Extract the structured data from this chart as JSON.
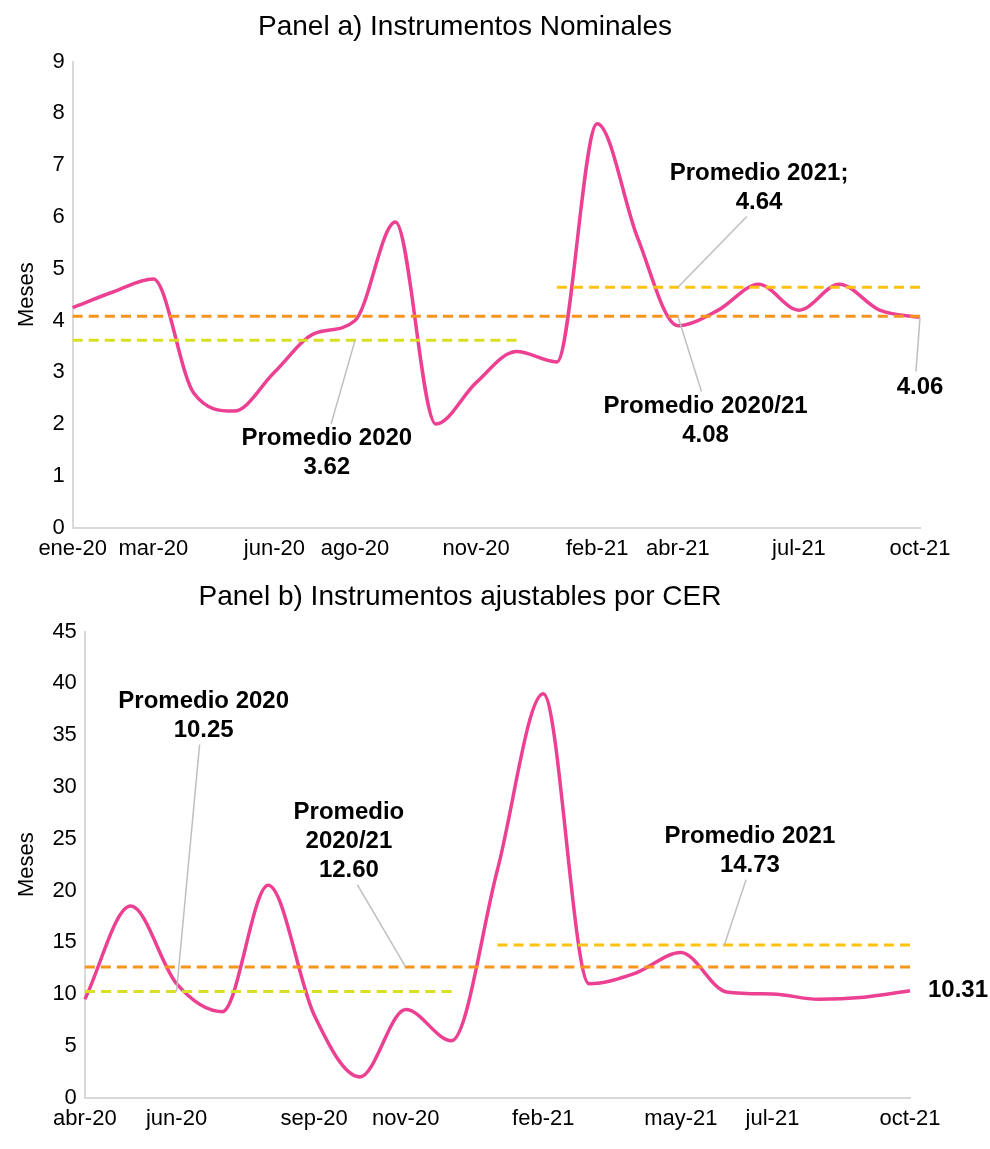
{
  "chart_data": [
    {
      "type": "line",
      "title": "Panel a) Instrumentos Nominales",
      "ylabel": "Meses",
      "categories": [
        "ene-20",
        null,
        "mar-20",
        null,
        null,
        "jun-20",
        null,
        "ago-20",
        null,
        null,
        "nov-20",
        null,
        null,
        "feb-21",
        null,
        "abr-21",
        null,
        null,
        "jul-21",
        null,
        null,
        "oct-21"
      ],
      "series": [
        {
          "color": "#ec4192",
          "values": [
            4.25,
            4.55,
            4.8,
            2.6,
            2.25,
            3.0,
            3.75,
            4.0,
            5.9,
            2.0,
            2.8,
            3.4,
            3.2,
            7.8,
            5.6,
            3.9,
            4.2,
            4.7,
            4.2,
            4.7,
            4.2,
            4.06
          ],
          "value_labels": [
            null,
            null,
            null,
            null,
            null,
            null,
            null,
            null,
            null,
            null,
            null,
            null,
            null,
            null,
            null,
            null,
            null,
            null,
            null,
            null,
            null,
            "4.06"
          ]
        },
        {
          "type": "line",
          "color": "#d9e021",
          "line_style": "dashed",
          "values": [
            3.62,
            3.62,
            3.62,
            3.62,
            3.62,
            3.62,
            3.62,
            3.62,
            3.62,
            3.62,
            3.62,
            3.62,
            null,
            null,
            null,
            null,
            null,
            null,
            null,
            null,
            null,
            null
          ]
        },
        {
          "type": "line",
          "color": "#f7941d",
          "line_style": "dashed",
          "values": [
            4.08,
            4.08,
            4.08,
            4.08,
            4.08,
            4.08,
            4.08,
            4.08,
            4.08,
            4.08,
            4.08,
            4.08,
            4.08,
            4.08,
            4.08,
            4.08,
            4.08,
            4.08,
            4.08,
            4.08,
            4.08,
            4.08
          ]
        },
        {
          "type": "line",
          "color": "#ffc20e",
          "line_style": "dashed",
          "values": [
            null,
            null,
            null,
            null,
            null,
            null,
            null,
            null,
            null,
            null,
            null,
            null,
            4.64,
            4.64,
            4.64,
            4.64,
            4.64,
            4.64,
            4.64,
            4.64,
            4.64,
            4.64
          ]
        }
      ],
      "ylim": [
        0,
        9
      ],
      "yticks": [
        0,
        1,
        2,
        3,
        4,
        5,
        6,
        7,
        8,
        9
      ],
      "grid": false,
      "legend": false,
      "marker": "none",
      "annotations": [
        {
          "text": "Promedio 2020\n3.62",
          "x": "ago-20",
          "y": 3.62
        },
        {
          "text": "Promedio 2021;\n4.64",
          "x": "abr-21",
          "y": 4.64
        },
        {
          "text": "Promedio 2020/21\n4.08",
          "x": "abr-21",
          "y": 4.08
        }
      ]
    },
    {
      "type": "line",
      "title": "Panel b) Instrumentos ajustables por CER",
      "ylabel": "Meses",
      "categories": [
        "abr-20",
        null,
        "jun-20",
        null,
        null,
        "sep-20",
        null,
        "nov-20",
        null,
        null,
        "feb-21",
        null,
        null,
        "may-21",
        null,
        "jul-21",
        null,
        null,
        "oct-21"
      ],
      "series": [
        {
          "color": "#ec4192",
          "values": [
            9.5,
            18.5,
            11,
            8.3,
            20.5,
            8,
            2,
            8.5,
            5.5,
            22,
            39,
            11,
            12,
            14,
            10.2,
            10,
            9.5,
            9.7,
            10.31
          ],
          "value_labels": [
            null,
            null,
            null,
            null,
            null,
            null,
            null,
            null,
            null,
            null,
            null,
            null,
            null,
            null,
            null,
            null,
            null,
            null,
            "10.31"
          ]
        },
        {
          "type": "line",
          "color": "#d9e021",
          "line_style": "dashed",
          "values": [
            10.25,
            10.25,
            10.25,
            10.25,
            10.25,
            10.25,
            10.25,
            10.25,
            10.25,
            null,
            null,
            null,
            null,
            null,
            null,
            null,
            null,
            null,
            null
          ]
        },
        {
          "type": "line",
          "color": "#f7941d",
          "line_style": "dashed",
          "values": [
            12.6,
            12.6,
            12.6,
            12.6,
            12.6,
            12.6,
            12.6,
            12.6,
            12.6,
            12.6,
            12.6,
            12.6,
            12.6,
            12.6,
            12.6,
            12.6,
            12.6,
            12.6,
            12.6
          ]
        },
        {
          "type": "line",
          "color": "#ffc20e",
          "line_style": "dashed",
          "values": [
            null,
            null,
            null,
            null,
            null,
            null,
            null,
            null,
            null,
            14.73,
            14.73,
            14.73,
            14.73,
            14.73,
            14.73,
            14.73,
            14.73,
            14.73,
            14.73
          ]
        }
      ],
      "ylim": [
        0,
        45
      ],
      "yticks": [
        0,
        5,
        10,
        15,
        20,
        25,
        30,
        35,
        40,
        45
      ],
      "grid": false,
      "legend": false,
      "marker": "none",
      "annotations": [
        {
          "text": "Promedio 2020\n10.25",
          "x": "jun-20",
          "y": 10.25
        },
        {
          "text": "Promedio\n2020/21\n12.60",
          "x": "nov-20",
          "y": 12.6
        },
        {
          "text": "Promedio 2021\n14.73",
          "y": 14.73
        }
      ]
    }
  ]
}
